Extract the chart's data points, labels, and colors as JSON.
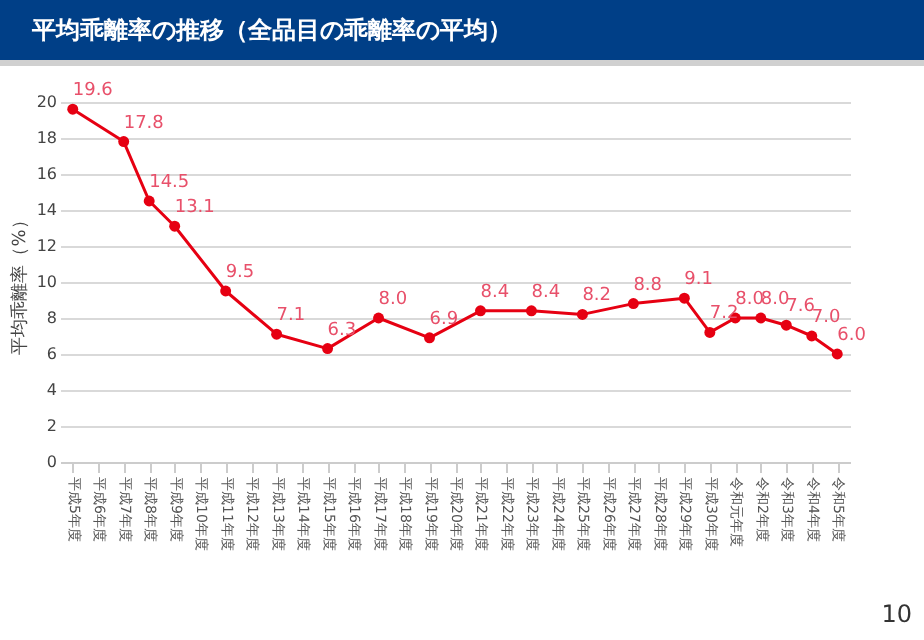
{
  "chart_data": {
    "type": "line",
    "title": "平均乖離率の推移（全品目の乖離率の平均）",
    "ylabel": "平均乖離率（%）",
    "categories": [
      "平成5年度",
      "平成6年度",
      "平成7年度",
      "平成8年度",
      "平成9年度",
      "平成10年度",
      "平成11年度",
      "平成12年度",
      "平成13年度",
      "平成14年度",
      "平成15年度",
      "平成16年度",
      "平成17年度",
      "平成18年度",
      "平成19年度",
      "平成20年度",
      "平成21年度",
      "平成22年度",
      "平成23年度",
      "平成24年度",
      "平成25年度",
      "平成26年度",
      "平成27年度",
      "平成28年度",
      "平成29年度",
      "平成30年度",
      "令和元年度",
      "令和2年度",
      "令和3年度",
      "令和4年度",
      "令和5年度"
    ],
    "series": [
      {
        "color": "#e60012",
        "values": [
          19.6,
          null,
          17.8,
          14.5,
          13.1,
          null,
          9.5,
          null,
          7.1,
          null,
          6.3,
          null,
          8.0,
          null,
          6.9,
          null,
          8.4,
          null,
          8.4,
          null,
          8.2,
          null,
          8.8,
          null,
          9.1,
          7.2,
          8.0,
          8.0,
          7.6,
          7.0,
          6.0
        ],
        "value_labels": [
          "19.6",
          null,
          "17.8",
          "14.5",
          "13.1",
          null,
          "9.5",
          null,
          "7.1",
          null,
          "6.3",
          null,
          "8.0",
          null,
          "6.9",
          null,
          "8.4",
          null,
          "8.4",
          null,
          "8.2",
          null,
          "8.8",
          null,
          "9.1",
          "7.2",
          "8.0",
          "8.0",
          "7.6",
          "7.0",
          "6.0"
        ]
      }
    ],
    "ylim": [
      0,
      20
    ],
    "yticks": [
      0,
      2,
      4,
      6,
      8,
      10,
      12,
      14,
      16,
      18,
      20
    ],
    "grid": "y",
    "legend": false,
    "marker": "circle",
    "annotations": [
      "10"
    ]
  }
}
